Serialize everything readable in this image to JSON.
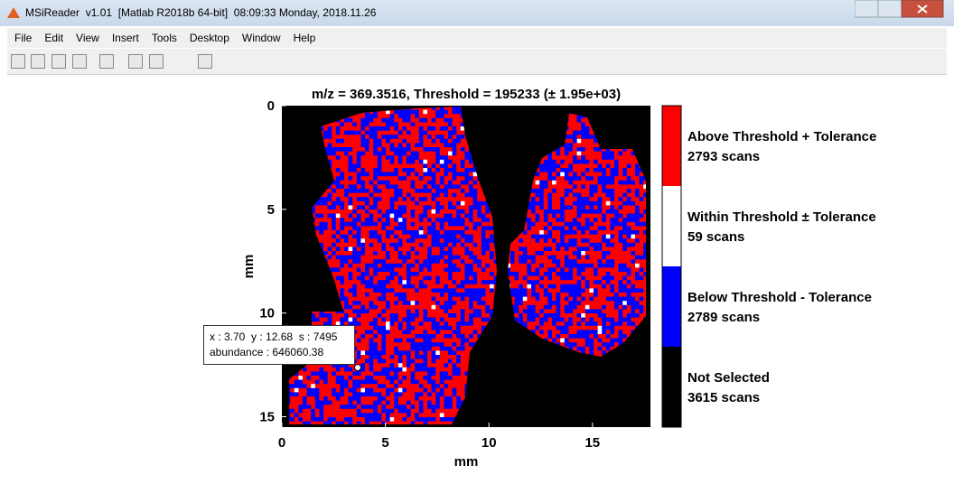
{
  "window": {
    "title": "MSiReader  v1.01  [Matlab R2018b 64-bit]  08:09:33 Monday, 2018.11.26"
  },
  "menu": [
    "File",
    "Edit",
    "View",
    "Insert",
    "Tools",
    "Desktop",
    "Window",
    "Help"
  ],
  "plot": {
    "title": "m/z = 369.3516, Threshold = 195233 (± 1.95e+03)",
    "xlabel": "mm",
    "ylabel": "mm",
    "xlim": [
      0,
      17.8
    ],
    "ylim": [
      0,
      15.5
    ],
    "xticks": [
      0,
      5,
      10,
      15
    ],
    "yticks": [
      0,
      5,
      10,
      15
    ],
    "colorbar": [
      {
        "label": "Above Threshold + Tolerance",
        "count": "2793 scans",
        "color": "#ff0000"
      },
      {
        "label": "Within Threshold ± Tolerance",
        "count": "59 scans",
        "color": "#ffffff"
      },
      {
        "label": "Below Threshold - Tolerance",
        "count": "2789 scans",
        "color": "#0000ff"
      },
      {
        "label": "Not Selected",
        "count": "3615 scans",
        "color": "#000000"
      }
    ]
  },
  "tooltip": {
    "line1": "x : 3.70  y : 12.68  s : 7495",
    "line2": "abundance : 646060.38"
  }
}
